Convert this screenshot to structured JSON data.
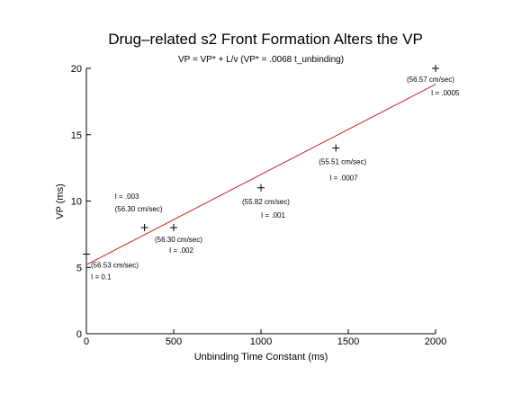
{
  "chart_data": {
    "type": "scatter",
    "title": "Drug–related s2 Front Formation Alters the VP",
    "subtitle": "VP = VP* + L/v    (VP* = .0068 t_unbinding)",
    "xlabel": "Unbinding Time Constant (ms)",
    "ylabel": "VP (ms)",
    "xlim": [
      0,
      2000
    ],
    "ylim": [
      0,
      20
    ],
    "xticks": [
      0,
      500,
      1000,
      1500,
      2000
    ],
    "yticks": [
      0,
      5,
      10,
      15,
      20
    ],
    "grid": false,
    "points": [
      {
        "x": 0,
        "y": 6,
        "labels": [
          "(56.53 cm/sec)",
          "I = 0.1"
        ]
      },
      {
        "x": 333,
        "y": 8,
        "labels": [
          "I = .003",
          "(56.30 cm/sec)"
        ]
      },
      {
        "x": 500,
        "y": 8,
        "labels": [
          "(56.30 cm/sec)",
          "I = .002"
        ]
      },
      {
        "x": 1000,
        "y": 11,
        "labels": [
          "(55.82 cm/sec)",
          "I = .001"
        ]
      },
      {
        "x": 1429,
        "y": 14,
        "labels": [
          "(55.51 cm/sec)",
          "I = .0007"
        ]
      },
      {
        "x": 2000,
        "y": 20,
        "labels": [
          "(56.57 cm/sec)",
          "I = .0005"
        ]
      }
    ],
    "fit_line": {
      "x": [
        0,
        2000
      ],
      "y": [
        5.2,
        18.8
      ],
      "color": "#cc2222"
    },
    "point_marker": "+"
  }
}
